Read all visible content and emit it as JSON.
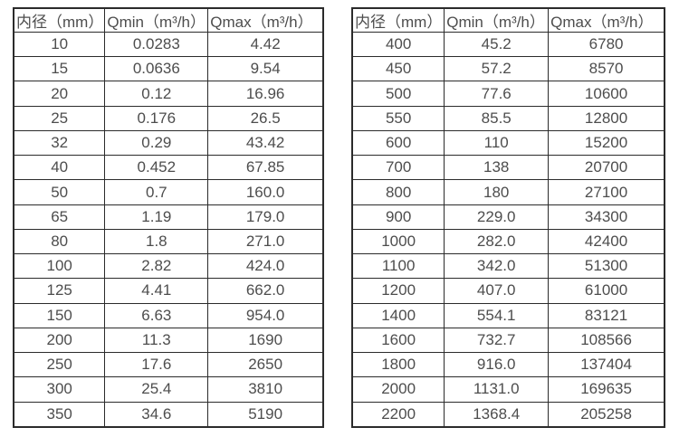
{
  "colors": {
    "border": "#2b2b2b",
    "text": "#4d4d4d",
    "background": "#ffffff"
  },
  "tables": [
    {
      "name": "small-diameter-flow-table",
      "headers": [
        "内径（mm）",
        "Qmin（m³/h）",
        "Qmax（m³/h）"
      ],
      "rows": [
        [
          "10",
          "0.0283",
          "4.42"
        ],
        [
          "15",
          "0.0636",
          "9.54"
        ],
        [
          "20",
          "0.12",
          "16.96"
        ],
        [
          "25",
          "0.176",
          "26.5"
        ],
        [
          "32",
          "0.29",
          "43.42"
        ],
        [
          "40",
          "0.452",
          "67.85"
        ],
        [
          "50",
          "0.7",
          "160.0"
        ],
        [
          "65",
          "1.19",
          "179.0"
        ],
        [
          "80",
          "1.8",
          "271.0"
        ],
        [
          "100",
          "2.82",
          "424.0"
        ],
        [
          "125",
          "4.41",
          "662.0"
        ],
        [
          "150",
          "6.63",
          "954.0"
        ],
        [
          "200",
          "11.3",
          "1690"
        ],
        [
          "250",
          "17.6",
          "2650"
        ],
        [
          "300",
          "25.4",
          "3810"
        ],
        [
          "350",
          "34.6",
          "5190"
        ]
      ]
    },
    {
      "name": "large-diameter-flow-table",
      "headers": [
        "内径（mm）",
        "Qmin（m³/h）",
        "Qmax（m³/h）"
      ],
      "rows": [
        [
          "400",
          "45.2",
          "6780"
        ],
        [
          "450",
          "57.2",
          "8570"
        ],
        [
          "500",
          "77.6",
          "10600"
        ],
        [
          "550",
          "85.5",
          "12800"
        ],
        [
          "600",
          "110",
          "15200"
        ],
        [
          "700",
          "138",
          "20700"
        ],
        [
          "800",
          "180",
          "27100"
        ],
        [
          "900",
          "229.0",
          "34300"
        ],
        [
          "1000",
          "282.0",
          "42400"
        ],
        [
          "1100",
          "342.0",
          "51300"
        ],
        [
          "1200",
          "407.0",
          "61000"
        ],
        [
          "1400",
          "554.1",
          "83121"
        ],
        [
          "1600",
          "732.7",
          "108566"
        ],
        [
          "1800",
          "916.0",
          "137404"
        ],
        [
          "2000",
          "1131.0",
          "169635"
        ],
        [
          "2200",
          "1368.4",
          "205258"
        ]
      ]
    }
  ]
}
